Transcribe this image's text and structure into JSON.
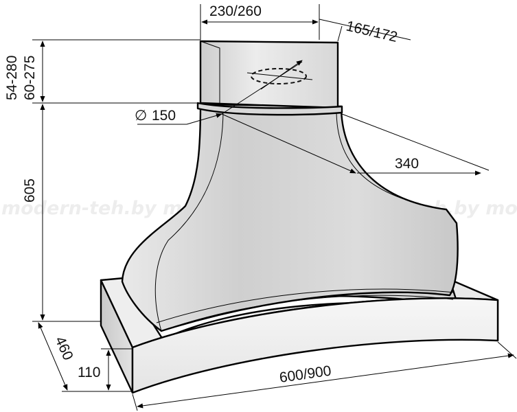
{
  "dimensions": {
    "duct_width": "230/260",
    "duct_depth": "165/172",
    "duct_height_a": "54-280",
    "duct_height_b": "60-275",
    "diameter_symbol": "∅",
    "diameter": "150",
    "canopy_offset": "340",
    "body_height": "605",
    "hood_depth": "460",
    "base_height": "110",
    "hood_width": "600/900"
  },
  "watermark": "modern-teh.by   modern-teh.by   modern-teh.by   mod",
  "colors": {
    "line": "#000000",
    "surface_light": "#fafafa",
    "surface_mid": "#dedede",
    "surface_dark": "#c4c4c4",
    "dashed": "#111111"
  }
}
